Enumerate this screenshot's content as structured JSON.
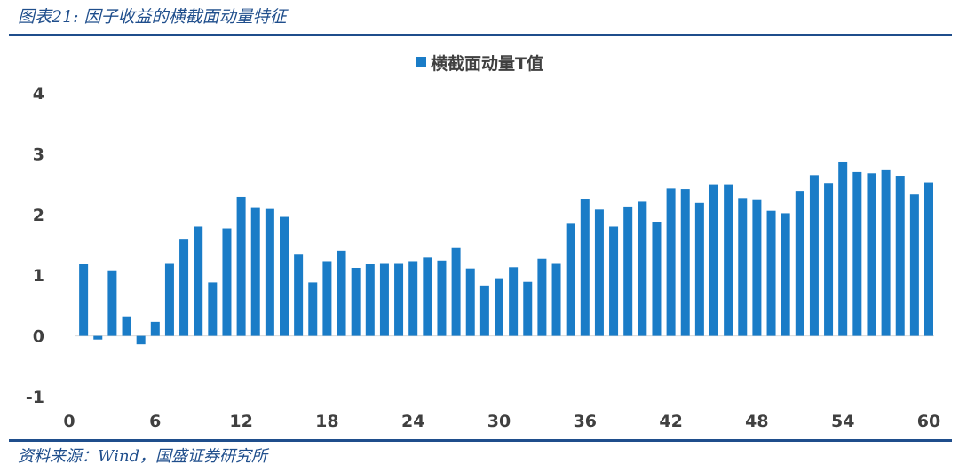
{
  "figure": {
    "title": "图表21: 因子收益的横截面动量特征",
    "source": "资料来源：Wind，国盛证券研究所"
  },
  "colors": {
    "bar": "#1a7cc7",
    "accent": "#1f4e8c",
    "text": "#404040"
  },
  "chart_data": {
    "type": "bar",
    "legend_position": "top-center",
    "grid": false,
    "x": [
      1,
      2,
      3,
      4,
      5,
      6,
      7,
      8,
      9,
      10,
      11,
      12,
      13,
      14,
      15,
      16,
      17,
      18,
      19,
      20,
      21,
      22,
      23,
      24,
      25,
      26,
      27,
      28,
      29,
      30,
      31,
      32,
      33,
      34,
      35,
      36,
      37,
      38,
      39,
      40,
      41,
      42,
      43,
      44,
      45,
      46,
      47,
      48,
      49,
      50,
      51,
      52,
      53,
      54,
      55,
      56,
      57,
      58,
      59,
      60
    ],
    "x_ticks": [
      "0",
      "6",
      "12",
      "18",
      "24",
      "30",
      "36",
      "42",
      "48",
      "54",
      "60"
    ],
    "y_ticks": [
      "-1",
      "0",
      "1",
      "2",
      "3",
      "4"
    ],
    "ylim": [
      -1,
      4
    ],
    "xlim": [
      0,
      60
    ],
    "series": [
      {
        "name": "横截面动量T值",
        "values": [
          1.18,
          -0.06,
          1.08,
          0.32,
          -0.14,
          0.23,
          1.2,
          1.6,
          1.8,
          0.88,
          1.77,
          2.29,
          2.12,
          2.09,
          1.96,
          1.35,
          0.88,
          1.23,
          1.4,
          1.12,
          1.18,
          1.2,
          1.2,
          1.23,
          1.29,
          1.24,
          1.46,
          1.11,
          0.83,
          0.95,
          1.13,
          0.89,
          1.27,
          1.2,
          1.86,
          2.26,
          2.08,
          1.8,
          2.13,
          2.21,
          1.88,
          2.43,
          2.42,
          2.19,
          2.5,
          2.5,
          2.27,
          2.25,
          2.06,
          2.02,
          2.39,
          2.65,
          2.52,
          2.86,
          2.7,
          2.68,
          2.73,
          2.64,
          2.33,
          2.53
        ]
      }
    ]
  }
}
